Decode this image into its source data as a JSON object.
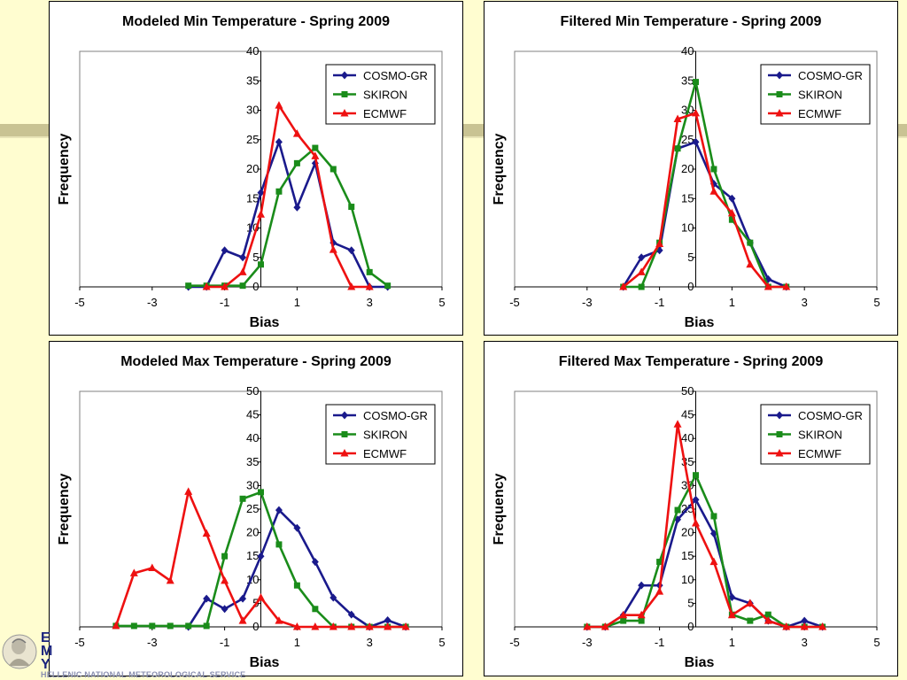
{
  "branding": {
    "service_name": "HELLENIC NATIONAL METEOROLOGICAL SERVICE"
  },
  "colors": {
    "cosmo": "#1a1a8c",
    "skiron": "#1a8c1a",
    "ecmwf": "#ee1111"
  },
  "chart_data": [
    {
      "type": "line",
      "title": "Modeled Min Temperature - Spring 2009",
      "xlabel": "Bias",
      "ylabel": "Frequency",
      "xlim": [
        -5,
        5
      ],
      "ylim": [
        0,
        40
      ],
      "xticks": [
        -5,
        -3,
        -1,
        1,
        3,
        5
      ],
      "yticks": [
        0,
        5,
        10,
        15,
        20,
        25,
        30,
        35,
        40
      ],
      "legend": "top-right",
      "grid": false,
      "series": [
        {
          "name": "COSMO-GR",
          "marker": "diamond",
          "x": [
            -2,
            -1.5,
            -1,
            -0.5,
            0,
            0.5,
            1,
            1.5,
            2,
            2.5,
            3,
            3.5
          ],
          "y": [
            0,
            0,
            6.2,
            5,
            16,
            24.6,
            13.5,
            21,
            7.5,
            6.2,
            0,
            0
          ]
        },
        {
          "name": "SKIRON",
          "marker": "square",
          "x": [
            -2,
            -1.5,
            -1,
            -0.5,
            0,
            0.5,
            1,
            1.5,
            2,
            2.5,
            3,
            3.5
          ],
          "y": [
            0.2,
            0.2,
            0.2,
            0.2,
            3.8,
            16.2,
            21,
            23.6,
            20,
            13.6,
            2.5,
            0.2
          ]
        },
        {
          "name": "ECMWF",
          "marker": "triangle",
          "x": [
            -1.5,
            -1,
            -0.5,
            0,
            0.5,
            1,
            1.5,
            2,
            2.5,
            3
          ],
          "y": [
            0,
            0,
            2.5,
            12.3,
            30.8,
            26,
            22.2,
            6.3,
            0,
            0
          ]
        }
      ]
    },
    {
      "type": "line",
      "title": "Filtered Min Temperature - Spring 2009",
      "xlabel": "Bias",
      "ylabel": "Frequency",
      "xlim": [
        -5,
        5
      ],
      "ylim": [
        0,
        40
      ],
      "xticks": [
        -5,
        -3,
        -1,
        1,
        3,
        5
      ],
      "yticks": [
        0,
        5,
        10,
        15,
        20,
        25,
        30,
        35,
        40
      ],
      "legend": "top-right",
      "grid": false,
      "series": [
        {
          "name": "COSMO-GR",
          "marker": "diamond",
          "x": [
            -2,
            -1.5,
            -1,
            -0.5,
            0,
            0.5,
            1,
            1.5,
            2,
            2.5
          ],
          "y": [
            0,
            5,
            6.2,
            23.5,
            24.6,
            17.5,
            15,
            7.5,
            1.3,
            0
          ]
        },
        {
          "name": "SKIRON",
          "marker": "square",
          "x": [
            -2,
            -1.5,
            -1,
            -0.5,
            0,
            0.5,
            1,
            1.5,
            2,
            2.5
          ],
          "y": [
            0,
            0,
            7.5,
            23.5,
            34.8,
            20,
            11.4,
            7.5,
            0,
            0
          ]
        },
        {
          "name": "ECMWF",
          "marker": "triangle",
          "x": [
            -2,
            -1.5,
            -1,
            -0.5,
            0,
            0.5,
            1,
            1.5,
            2,
            2.5
          ],
          "y": [
            0,
            2.5,
            7.3,
            28.5,
            29.5,
            16.2,
            12.5,
            3.8,
            0,
            0
          ]
        }
      ]
    },
    {
      "type": "line",
      "title": "Modeled Max Temperature - Spring 2009",
      "xlabel": "Bias",
      "ylabel": "Frequency",
      "xlim": [
        -5,
        5
      ],
      "ylim": [
        0,
        50
      ],
      "xticks": [
        -5,
        -3,
        -1,
        1,
        3,
        5
      ],
      "yticks": [
        0,
        5,
        10,
        15,
        20,
        25,
        30,
        35,
        40,
        45,
        50
      ],
      "legend": "top-right",
      "grid": false,
      "series": [
        {
          "name": "COSMO-GR",
          "marker": "diamond",
          "x": [
            -2,
            -1.5,
            -1,
            -0.5,
            0,
            0.5,
            1,
            1.5,
            2,
            2.5,
            3,
            3.5,
            4
          ],
          "y": [
            0,
            6,
            3.8,
            6,
            15,
            24.8,
            21,
            13.8,
            6.2,
            2.6,
            0,
            1.4,
            0
          ]
        },
        {
          "name": "SKIRON",
          "marker": "square",
          "x": [
            -4,
            -3.5,
            -3,
            -2.5,
            -2,
            -1.5,
            -1,
            -0.5,
            0,
            0.5,
            1,
            1.5,
            2,
            2.5,
            3,
            3.5,
            4
          ],
          "y": [
            0.2,
            0.2,
            0.2,
            0.2,
            0.2,
            0.2,
            15,
            27.2,
            28.6,
            17.5,
            8.8,
            3.8,
            0,
            0,
            0,
            0,
            0
          ]
        },
        {
          "name": "ECMWF",
          "marker": "triangle",
          "x": [
            -4,
            -3.5,
            -3,
            -2.5,
            -2,
            -1.5,
            -1,
            -0.5,
            0,
            0.5,
            1,
            1.5,
            2,
            2.5,
            3,
            3.5,
            4
          ],
          "y": [
            0.2,
            11.4,
            12.5,
            9.8,
            28.7,
            19.8,
            9.8,
            1.3,
            6.2,
            1.3,
            0,
            0,
            0,
            0,
            0,
            0,
            0
          ]
        }
      ]
    },
    {
      "type": "line",
      "title": "Filtered Max Temperature - Spring 2009",
      "xlabel": "Bias",
      "ylabel": "Frequency",
      "xlim": [
        -5,
        5
      ],
      "ylim": [
        0,
        50
      ],
      "xticks": [
        -5,
        -3,
        -1,
        1,
        3,
        5
      ],
      "yticks": [
        0,
        5,
        10,
        15,
        20,
        25,
        30,
        35,
        40,
        45,
        50
      ],
      "legend": "top-right",
      "grid": false,
      "series": [
        {
          "name": "COSMO-GR",
          "marker": "diamond",
          "x": [
            -3,
            -2.5,
            -2,
            -1.5,
            -1,
            -0.5,
            0,
            0.5,
            1,
            1.5,
            2,
            2.5,
            3,
            3.5
          ],
          "y": [
            0,
            0,
            2.5,
            8.8,
            8.8,
            22.8,
            27,
            19.8,
            6.3,
            5,
            1.3,
            0,
            1.3,
            0
          ]
        },
        {
          "name": "SKIRON",
          "marker": "square",
          "x": [
            -3,
            -2.5,
            -2,
            -1.5,
            -1,
            -0.5,
            0,
            0.5,
            1,
            1.5,
            2,
            2.5,
            3,
            3.5
          ],
          "y": [
            0,
            0,
            1.3,
            1.3,
            13.8,
            24.8,
            32.2,
            23.5,
            2.6,
            1.3,
            2.6,
            0,
            0,
            0
          ]
        },
        {
          "name": "ECMWF",
          "marker": "triangle",
          "x": [
            -3,
            -2.5,
            -2,
            -1.5,
            -1,
            -0.5,
            0,
            0.5,
            1,
            1.5,
            2,
            2.5,
            3,
            3.5
          ],
          "y": [
            0,
            0,
            2.5,
            2.5,
            7.5,
            43,
            22,
            13.8,
            2.5,
            5,
            1.3,
            0,
            0,
            0
          ]
        }
      ]
    }
  ]
}
